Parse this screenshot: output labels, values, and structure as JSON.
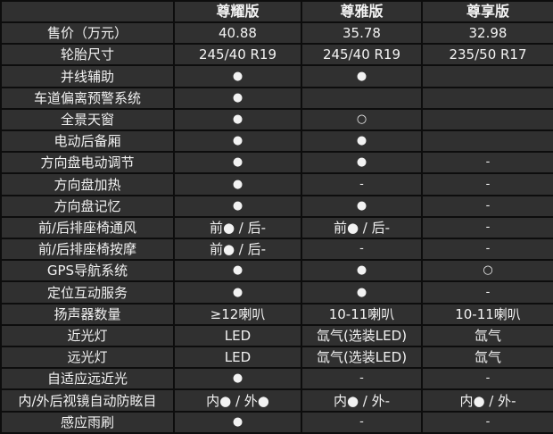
{
  "columns": [
    "",
    "尊耀版",
    "尊雅版",
    "尊享版"
  ],
  "rows": [
    {
      "label": "售价（万元）",
      "values": [
        "40.88",
        "35.78",
        "32.98"
      ]
    },
    {
      "label": "轮胎尺寸",
      "values": [
        "245/40 R19",
        "245/40 R19",
        "235/50 R17"
      ]
    },
    {
      "label": "并线辅助",
      "values": [
        "●",
        "●",
        ""
      ]
    },
    {
      "label": "车道偏离预警系统",
      "values": [
        "●",
        "",
        ""
      ]
    },
    {
      "label": "全景天窗",
      "values": [
        "●",
        "○",
        ""
      ]
    },
    {
      "label": "电动后备厢",
      "values": [
        "●",
        "●",
        ""
      ]
    },
    {
      "label": "方向盘电动调节",
      "values": [
        "●",
        "●",
        "-"
      ]
    },
    {
      "label": "方向盘加热",
      "values": [
        "●",
        "-",
        "-"
      ]
    },
    {
      "label": "方向盘记忆",
      "values": [
        "●",
        "●",
        "-"
      ]
    },
    {
      "label": "前/后排座椅通风",
      "values": [
        "前● / 后-",
        "前● / 后-",
        "-"
      ]
    },
    {
      "label": "前/后排座椅按摩",
      "values": [
        "前● / 后-",
        "-",
        "-"
      ]
    },
    {
      "label": "GPS导航系统",
      "values": [
        "●",
        "●",
        "○"
      ]
    },
    {
      "label": "定位互动服务",
      "values": [
        "●",
        "●",
        "-"
      ]
    },
    {
      "label": "扬声器数量",
      "values": [
        "≥12喇叭",
        "10-11喇叭",
        "10-11喇叭"
      ]
    },
    {
      "label": "近光灯",
      "values": [
        "LED",
        "氙气(选装LED)",
        "氙气"
      ]
    },
    {
      "label": "远光灯",
      "values": [
        "LED",
        "氙气(选装LED)",
        "氙气"
      ]
    },
    {
      "label": "自适应远近光",
      "values": [
        "●",
        "-",
        "-"
      ]
    },
    {
      "label": "内/外后视镜自动防眩目",
      "values": [
        "内● / 外●",
        "内● / 外-",
        "内● / 外-"
      ]
    },
    {
      "label": "感应雨刷",
      "values": [
        "●",
        "-",
        "-"
      ]
    }
  ],
  "colors": {
    "background": "#303030",
    "grid": "#0d0d0d",
    "text": "#f2f2f2"
  }
}
